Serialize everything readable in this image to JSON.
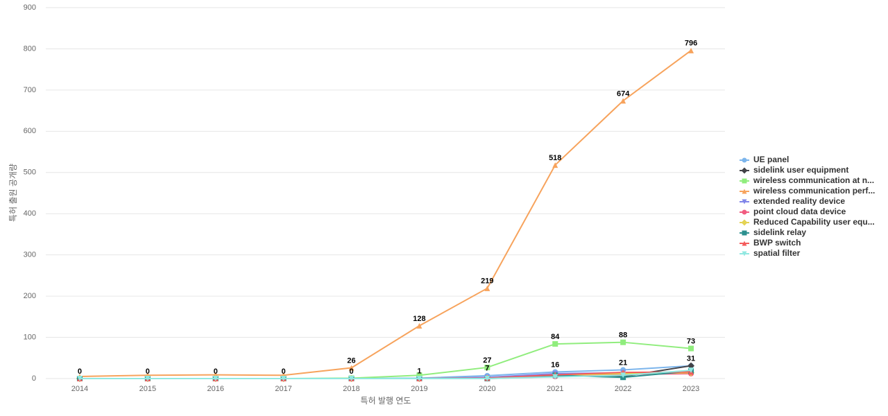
{
  "chart_data": {
    "type": "line",
    "x_label": "특허 발행 연도",
    "y_label": "특허 출원 공개량",
    "categories": [
      "2014",
      "2015",
      "2016",
      "2017",
      "2018",
      "2019",
      "2020",
      "2021",
      "2022",
      "2023"
    ],
    "ylim": [
      0,
      900
    ],
    "yticks": [
      0,
      100,
      200,
      300,
      400,
      500,
      600,
      700,
      800,
      900
    ],
    "grid": true,
    "legend": "right",
    "series": [
      {
        "name": "UE panel",
        "color": "#7cb5ec",
        "marker": "circle",
        "values": [
          0,
          0,
          0,
          0,
          0,
          1,
          7,
          16,
          21,
          31
        ],
        "value_labels": [
          "0",
          "0",
          "0",
          "0",
          "0",
          "1",
          "7",
          "16",
          "21",
          "31"
        ]
      },
      {
        "name": "sidelink user equipment",
        "color": "#434348",
        "marker": "diamond",
        "values": [
          0,
          0,
          0,
          0,
          0,
          0,
          1,
          10,
          5,
          31
        ]
      },
      {
        "name": "wireless communication at n...",
        "color": "#90ed7d",
        "marker": "square",
        "values": [
          0,
          0,
          0,
          0,
          1,
          8,
          27,
          84,
          88,
          73
        ],
        "value_labels": [
          null,
          null,
          null,
          null,
          null,
          null,
          "27",
          "84",
          "88",
          "73"
        ]
      },
      {
        "name": "wireless communication perf...",
        "color": "#f7a35c",
        "marker": "triangle",
        "values": [
          5,
          8,
          9,
          8,
          26,
          128,
          219,
          518,
          674,
          796
        ],
        "value_labels": [
          null,
          null,
          null,
          null,
          "26",
          "128",
          "219",
          "518",
          "674",
          "796"
        ]
      },
      {
        "name": "extended reality device",
        "color": "#8085e9",
        "marker": "triangle-down",
        "values": [
          0,
          0,
          0,
          0,
          0,
          0,
          3,
          12,
          14,
          15
        ]
      },
      {
        "name": "point cloud data device",
        "color": "#f15c80",
        "marker": "circle",
        "values": [
          0,
          0,
          0,
          0,
          0,
          0,
          0,
          5,
          10,
          12
        ]
      },
      {
        "name": "Reduced Capability user equ...",
        "color": "#e4d354",
        "marker": "diamond",
        "values": [
          0,
          0,
          0,
          0,
          0,
          0,
          1,
          8,
          12,
          14
        ]
      },
      {
        "name": "sidelink relay",
        "color": "#2b908f",
        "marker": "square",
        "values": [
          0,
          0,
          0,
          0,
          0,
          0,
          0,
          8,
          3,
          18
        ]
      },
      {
        "name": "BWP switch",
        "color": "#f45b5b",
        "marker": "triangle",
        "values": [
          0,
          0,
          0,
          0,
          0,
          0,
          1,
          9,
          15,
          16
        ]
      },
      {
        "name": "spatial filter",
        "color": "#91e8e1",
        "marker": "triangle-down",
        "values": [
          0,
          0,
          0,
          0,
          0,
          0,
          0,
          4,
          8,
          20
        ]
      }
    ]
  }
}
